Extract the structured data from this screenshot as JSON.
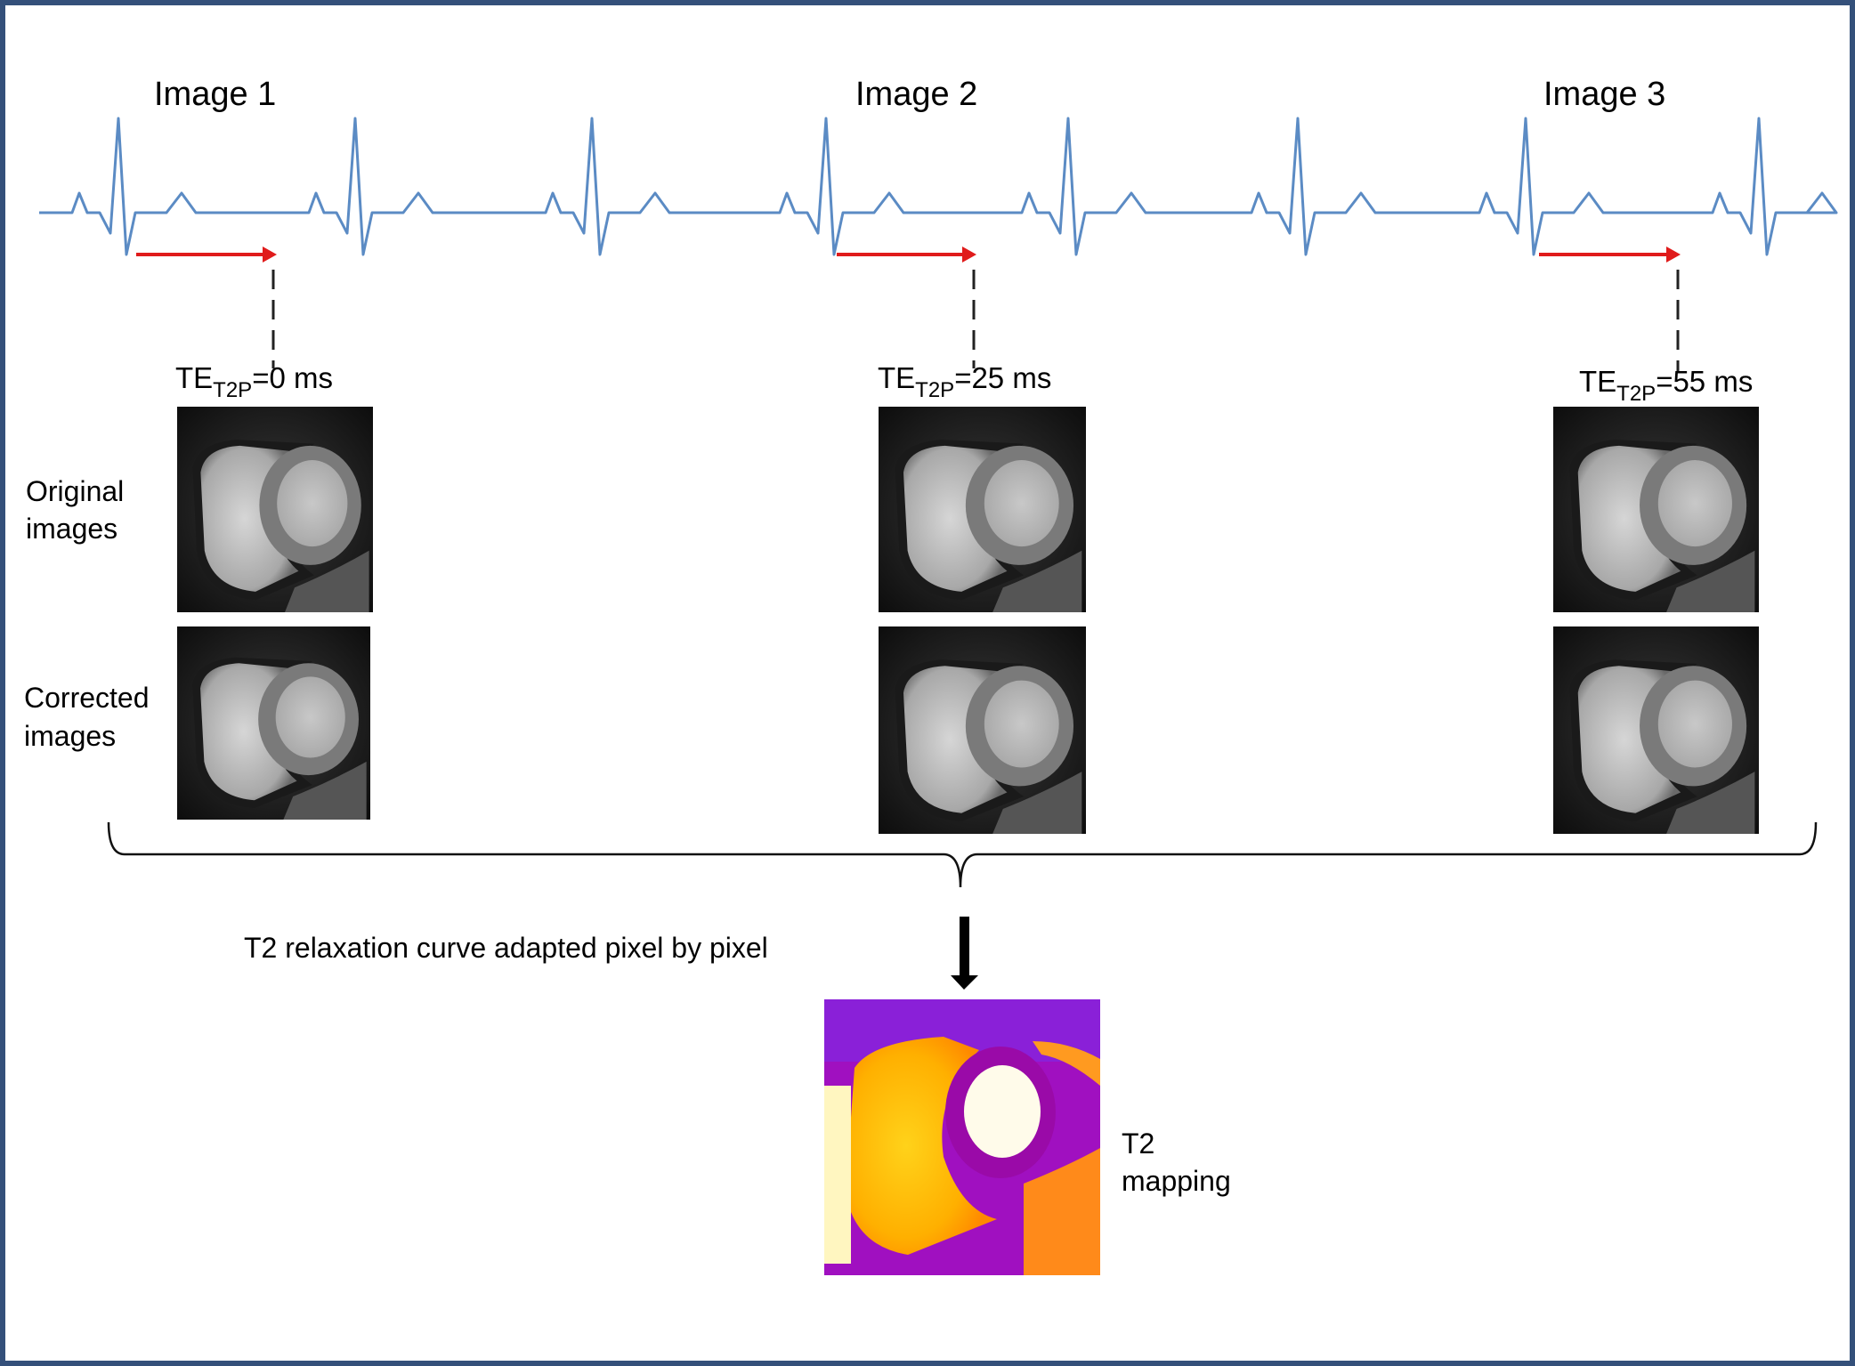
{
  "image_labels": [
    "Image 1",
    "Image 2",
    "Image 3"
  ],
  "echo_times": [
    {
      "prefix": "TE",
      "subscript": "T2P",
      "value": "=0 ms"
    },
    {
      "prefix": "TE",
      "subscript": "T2P",
      "value": "=25 ms"
    },
    {
      "prefix": "TE",
      "subscript": "T2P",
      "value": "=55 ms"
    }
  ],
  "row_labels": {
    "original": [
      "Original",
      "images"
    ],
    "corrected": [
      "Corrected",
      "images"
    ]
  },
  "process_text": "T2 relaxation curve adapted pixel by pixel",
  "result_label": [
    "T2",
    "mapping"
  ],
  "colors": {
    "ecg": "#5b8bc4",
    "arrow": "#e01b1b",
    "border": "#34507a"
  }
}
